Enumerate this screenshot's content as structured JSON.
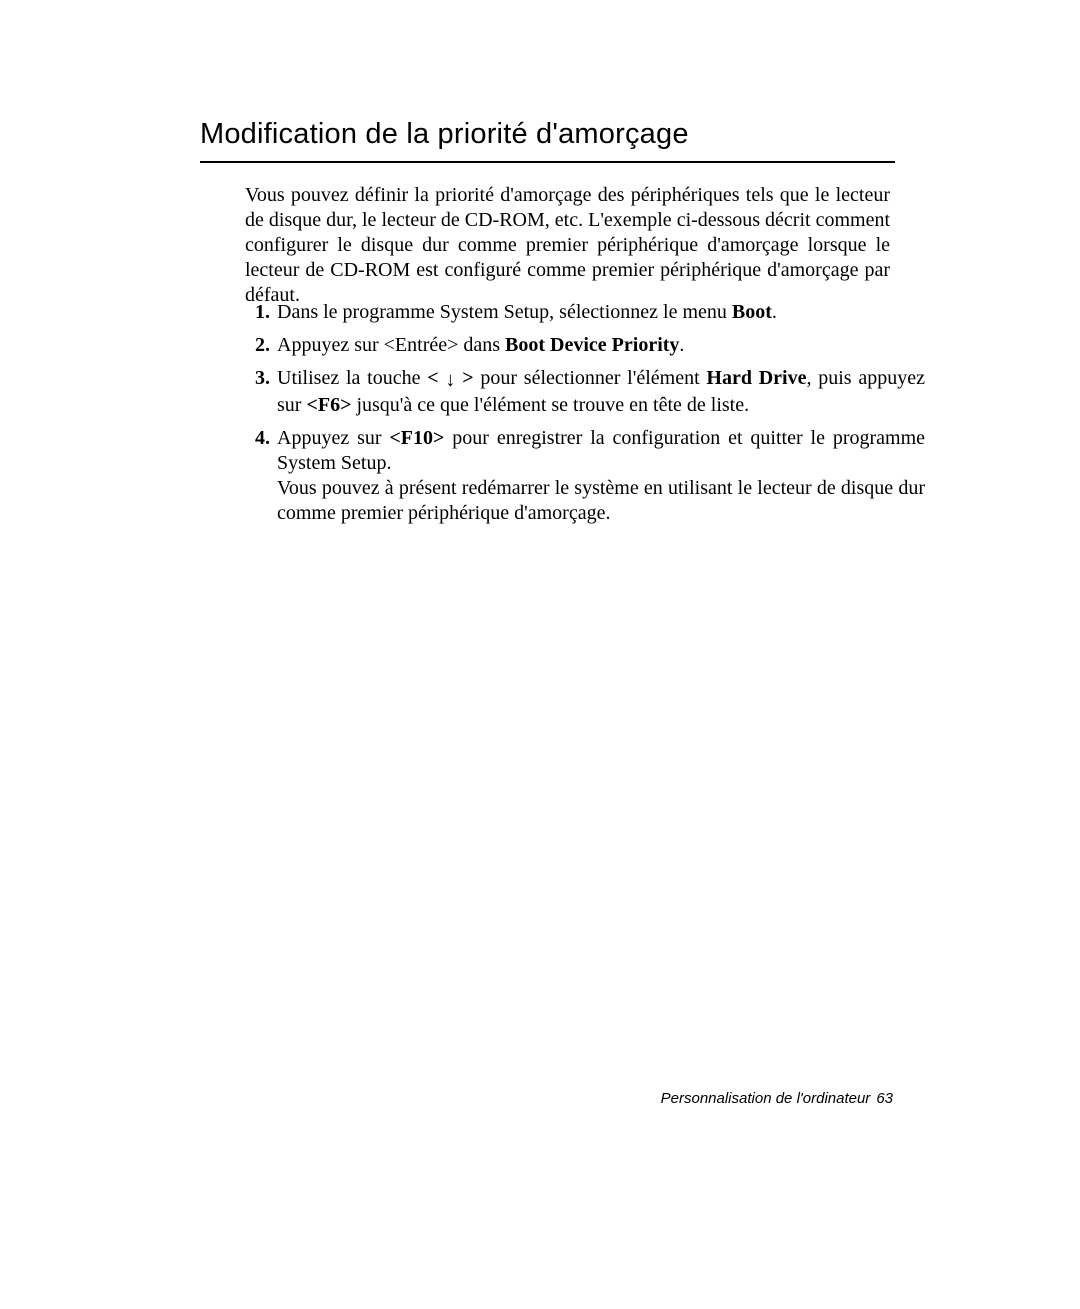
{
  "colors": {
    "text": "#000000",
    "background": "#ffffff",
    "rule": "#000000"
  },
  "typography": {
    "heading_family": "Arial",
    "heading_size_pt": 22,
    "body_family": "Times New Roman",
    "body_size_pt": 15,
    "footer_family": "Arial",
    "footer_size_pt": 11
  },
  "heading": "Modification de la priorité d'amorçage",
  "intro": "Vous pouvez définir la priorité d'amorçage des périphériques tels que le lecteur de disque dur, le lecteur de CD-ROM, etc. L'exemple ci-dessous décrit comment configurer le disque dur comme premier périphérique d'amorçage lorsque le lecteur de CD-ROM est configuré comme premier périphérique d'amorçage par défaut.",
  "steps": {
    "s1_a": "Dans le programme System Setup, sélectionnez le menu ",
    "s1_b": "Boot",
    "s1_c": ".",
    "s2_a": "Appuyez sur <Entrée> dans ",
    "s2_b": "Boot Device Priority",
    "s2_c": ".",
    "s3_a": "Utilisez la touche ",
    "s3_b": "<",
    "s3_arrow": "↓",
    "s3_c": ">",
    "s3_d": " pour sélectionner l'élément ",
    "s3_e": "Hard Drive",
    "s3_f": ", puis appuyez sur ",
    "s3_g": "<F6>",
    "s3_h": " jusqu'à ce que l'élément se trouve en tête de liste.",
    "s4_a": "Appuyez sur ",
    "s4_b": "<F10>",
    "s4_c": " pour enregistrer la configuration et quitter le programme System Setup.",
    "s4_d": "Vous pouvez à présent redémarrer le système en utilisant le lecteur de disque dur comme premier périphérique d'amorçage."
  },
  "footer": {
    "label": "Personnalisation de l'ordinateur",
    "page_number": "63"
  }
}
